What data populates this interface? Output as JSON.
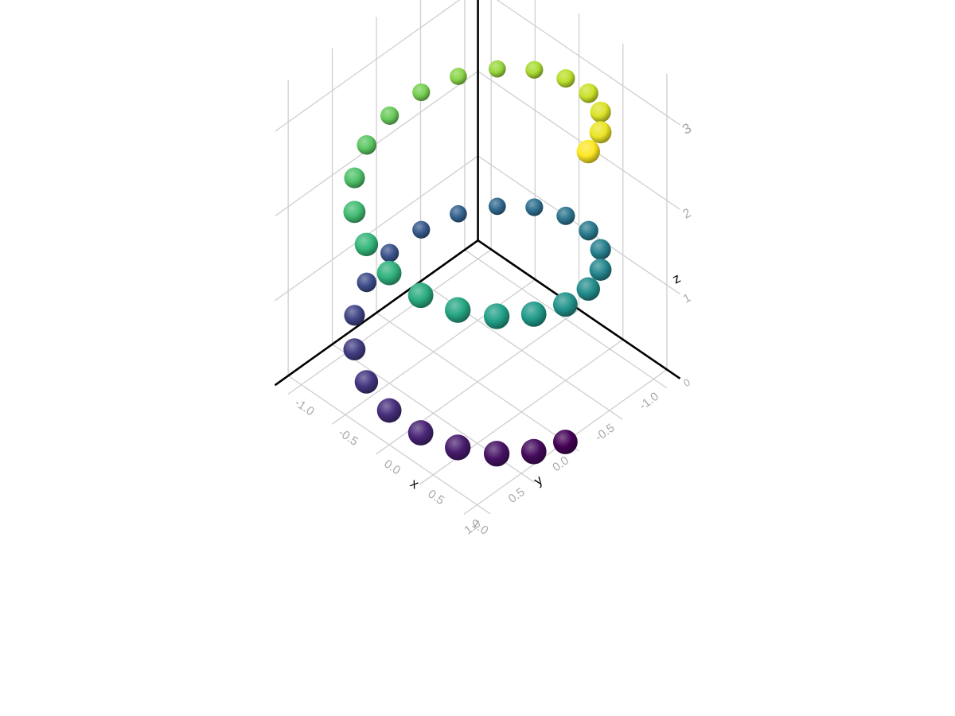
{
  "chart_data": {
    "type": "scatter",
    "projection": "3d",
    "title": "",
    "xlabel": "x",
    "ylabel": "y",
    "zlabel": "z",
    "x_ticks": [
      "-1.0",
      "-0.5",
      "0.0",
      "0.5",
      "1.0"
    ],
    "y_ticks": [
      "-1.0",
      "-0.5",
      "0.0",
      "0.5",
      "1.0"
    ],
    "z_ticks": [
      "0",
      "1",
      "2",
      "3"
    ],
    "xlim": [
      -1.15,
      1.15
    ],
    "ylim": [
      -1.15,
      1.15
    ],
    "zlim": [
      0,
      3.5
    ],
    "grid": true,
    "colormap": "viridis",
    "color_by": "z",
    "marker": "sphere",
    "description": "Helical spiral of 40 points: x = cos(t), y = sin(t), z = t/(4π)·3.25, t from 0 to 4π",
    "points": {
      "x": [
        1.0,
        0.951,
        0.809,
        0.588,
        0.309,
        0.0,
        -0.309,
        -0.588,
        -0.809,
        -0.951,
        -1.0,
        -0.951,
        -0.809,
        -0.588,
        -0.309,
        0.0,
        0.309,
        0.588,
        0.809,
        0.951,
        1.0,
        0.951,
        0.809,
        0.588,
        0.309,
        0.0,
        -0.309,
        -0.588,
        -0.809,
        -0.951,
        -1.0,
        -0.951,
        -0.809,
        -0.588,
        -0.309,
        0.0,
        0.309,
        0.588,
        0.809,
        0.951
      ],
      "y": [
        0.0,
        0.309,
        0.588,
        0.809,
        0.951,
        1.0,
        0.951,
        0.809,
        0.588,
        0.309,
        0.0,
        -0.309,
        -0.588,
        -0.809,
        -0.951,
        -1.0,
        -0.951,
        -0.809,
        -0.588,
        -0.309,
        0.0,
        0.309,
        0.588,
        0.809,
        0.951,
        1.0,
        0.951,
        0.809,
        0.588,
        0.309,
        0.0,
        -0.309,
        -0.588,
        -0.809,
        -0.951,
        -1.0,
        -0.951,
        -0.809,
        -0.588,
        -0.309
      ],
      "z": [
        0.0,
        0.081,
        0.163,
        0.244,
        0.325,
        0.406,
        0.488,
        0.569,
        0.65,
        0.731,
        0.813,
        0.894,
        0.975,
        1.056,
        1.138,
        1.219,
        1.3,
        1.381,
        1.463,
        1.544,
        1.625,
        1.706,
        1.788,
        1.869,
        1.95,
        2.031,
        2.113,
        2.194,
        2.275,
        2.356,
        2.438,
        2.519,
        2.6,
        2.681,
        2.763,
        2.844,
        2.925,
        3.006,
        3.088,
        3.169
      ]
    }
  }
}
